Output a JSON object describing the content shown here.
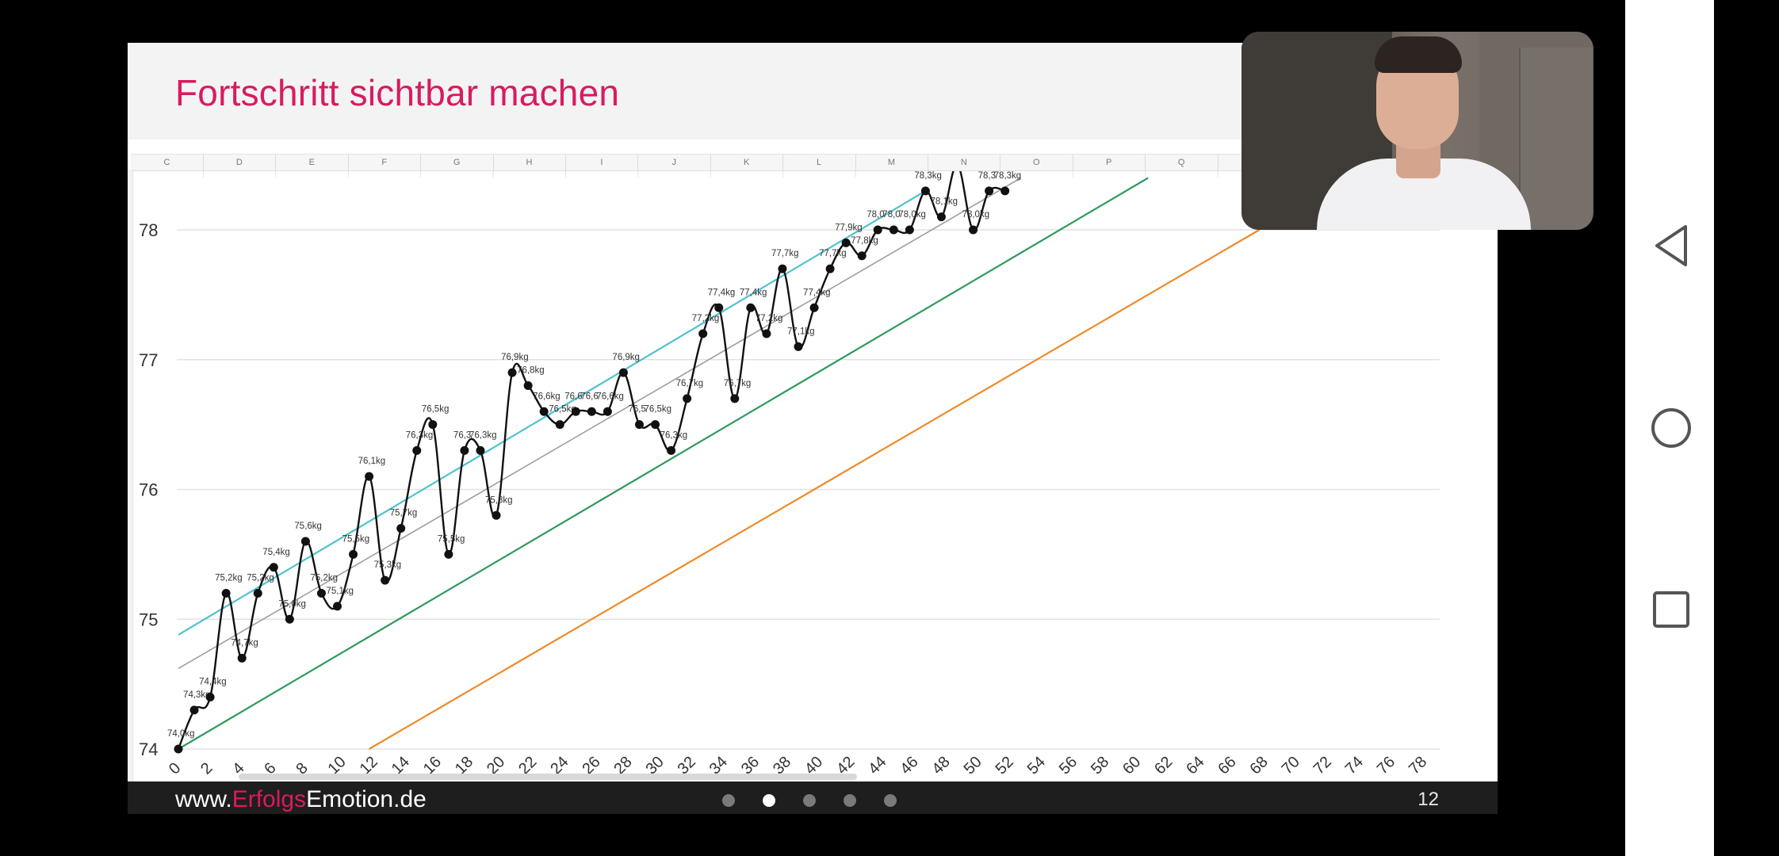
{
  "slide": {
    "title": "Fortschritt sichtbar machen",
    "footer_url_prefix": "www.",
    "footer_url_accent": "Erfolgs",
    "footer_url_suffix": "Emotion.de",
    "page_number": "12",
    "dots_total": 5,
    "dots_active_index": 1
  },
  "sheet": {
    "columns": [
      "C",
      "D",
      "E",
      "F",
      "G",
      "H",
      "I",
      "J",
      "K",
      "L",
      "M",
      "N",
      "O",
      "P",
      "Q"
    ]
  },
  "colors": {
    "title": "#d81b60",
    "weight_line": "#111111",
    "avg_trend": "#9e9e9e",
    "upper_trend": "#4fc3d0",
    "lower_trend": "#2e9a5e",
    "goal_line": "#ef8a2a"
  },
  "chart_data": {
    "type": "line",
    "ylim": [
      74,
      78.4
    ],
    "y_ticks": [
      "74",
      "75",
      "76",
      "77",
      "78"
    ],
    "xlim": [
      0,
      78
    ],
    "x_ticks": [
      "0",
      "2",
      "4",
      "6",
      "8",
      "10",
      "12",
      "14",
      "16",
      "18",
      "20",
      "22",
      "24",
      "26",
      "28",
      "30",
      "32",
      "34",
      "36",
      "38",
      "40",
      "42",
      "44",
      "46",
      "48",
      "50",
      "52",
      "54",
      "56",
      "58",
      "60",
      "62",
      "64",
      "66",
      "68",
      "70",
      "72",
      "74",
      "76",
      "78"
    ],
    "series": [
      {
        "key": "weight",
        "x": [
          0,
          1,
          2,
          3,
          4,
          5,
          6,
          7,
          8,
          9,
          10,
          11,
          12,
          13,
          14,
          15,
          16,
          17,
          18,
          19,
          20,
          21,
          22,
          23,
          24,
          25,
          26,
          27,
          28,
          29,
          30,
          31,
          32,
          33,
          34,
          35,
          36,
          37,
          38,
          39,
          40,
          41,
          42,
          43,
          44,
          45,
          46,
          47,
          48,
          49,
          50,
          51,
          52
        ],
        "y": [
          74.0,
          74.3,
          74.4,
          75.2,
          74.7,
          75.2,
          75.4,
          75.0,
          75.6,
          75.2,
          75.1,
          75.5,
          76.1,
          75.3,
          75.7,
          76.3,
          76.5,
          75.5,
          76.3,
          76.3,
          75.8,
          76.9,
          76.8,
          76.6,
          76.5,
          76.6,
          76.6,
          76.6,
          76.9,
          76.5,
          76.5,
          76.3,
          76.7,
          77.2,
          77.4,
          76.7,
          77.4,
          77.2,
          77.7,
          77.1,
          77.4,
          77.7,
          77.9,
          77.8,
          78.0,
          78.0,
          78.0,
          78.3,
          78.1,
          78.5,
          78.0,
          78.3,
          78.3
        ],
        "labels": [
          "74,0kg",
          "74,3kg",
          "74,4kg",
          "75,2kg",
          "74,7kg",
          "75,2kg",
          "75,4kg",
          "75,0kg",
          "75,6kg",
          "75,2kg",
          "75,1kg",
          "75,5kg",
          "76,1kg",
          "75,3kg",
          "75,7kg",
          "76,3kg",
          "76,5kg",
          "75,5kg",
          "76,3",
          "76,3kg",
          "75,8kg",
          "76,9kg",
          "76,8kg",
          "76,6kg",
          "76,5kg",
          "76,6",
          "76,6",
          "76,6kg",
          "76,9kg",
          "76,5",
          "76,5kg",
          "76,3kg",
          "76,7kg",
          "77,2kg",
          "77,4kg",
          "76,7kg",
          "77,4kg",
          "77,2kg",
          "77,7kg",
          "77,1kg",
          "77,4kg",
          "77,7kg",
          "77,9kg",
          "77,8kg",
          "78,0",
          "78,0",
          "78,0kg",
          "78,3kg",
          "78,1kg",
          "",
          "78,0kg",
          "78,3",
          "78,3kg"
        ]
      },
      {
        "key": "upper_trend",
        "x": [
          0,
          47
        ],
        "y": [
          74.88,
          78.3
        ]
      },
      {
        "key": "avg_trend",
        "x": [
          0,
          53
        ],
        "y": [
          74.62,
          78.4
        ]
      },
      {
        "key": "lower_trend",
        "x": [
          0,
          61
        ],
        "y": [
          74.0,
          78.4
        ]
      },
      {
        "key": "goal_line",
        "x": [
          12,
          68
        ],
        "y": [
          74.0,
          78.0
        ]
      }
    ],
    "grid": true,
    "legend": "none"
  },
  "navbar": {
    "back_icon": "back-icon",
    "home_icon": "home-icon",
    "recents_icon": "recents-icon"
  }
}
